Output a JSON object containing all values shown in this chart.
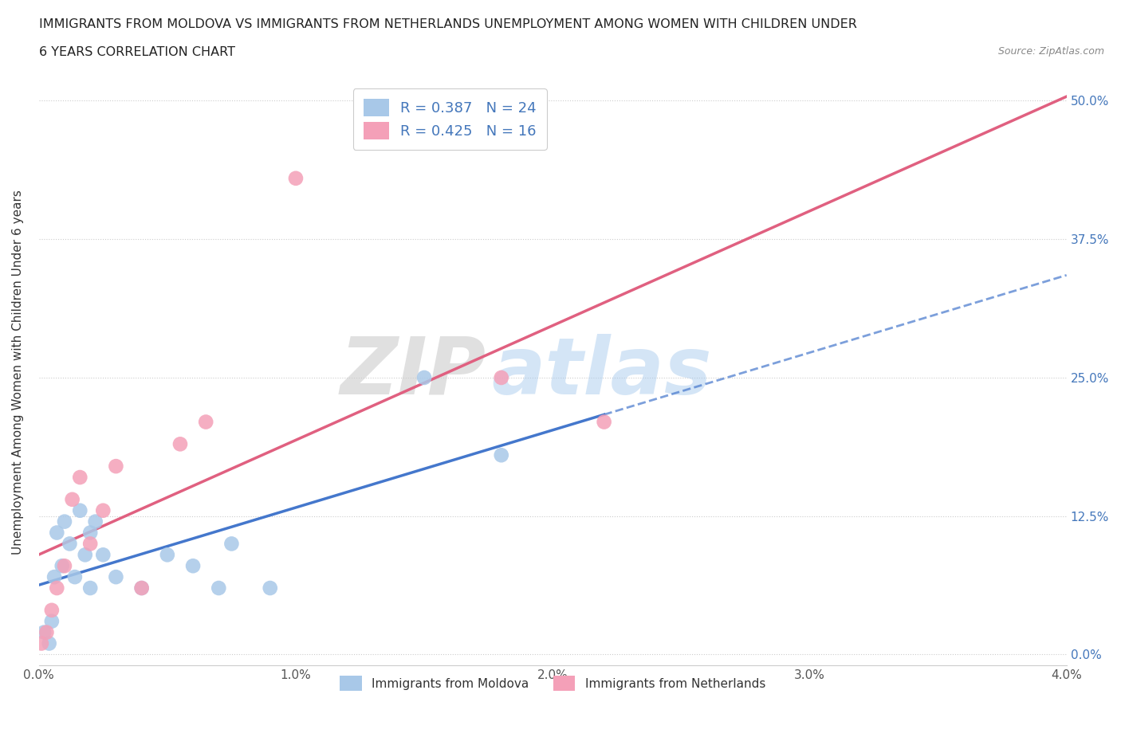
{
  "title_line1": "IMMIGRANTS FROM MOLDOVA VS IMMIGRANTS FROM NETHERLANDS UNEMPLOYMENT AMONG WOMEN WITH CHILDREN UNDER",
  "title_line2": "6 YEARS CORRELATION CHART",
  "source": "Source: ZipAtlas.com",
  "ylabel": "Unemployment Among Women with Children Under 6 years",
  "xlim": [
    0.0,
    0.04
  ],
  "ylim": [
    -0.01,
    0.52
  ],
  "yticks": [
    0.0,
    0.125,
    0.25,
    0.375,
    0.5
  ],
  "ytick_labels": [
    "0.0%",
    "12.5%",
    "25.0%",
    "37.5%",
    "50.0%"
  ],
  "xticks": [
    0.0,
    0.01,
    0.02,
    0.03,
    0.04
  ],
  "xtick_labels": [
    "0.0%",
    "1.0%",
    "2.0%",
    "3.0%",
    "4.0%"
  ],
  "moldova_color": "#a8c8e8",
  "netherlands_color": "#f4a0b8",
  "moldova_r": 0.387,
  "moldova_n": 24,
  "netherlands_r": 0.425,
  "netherlands_n": 16,
  "moldova_x": [
    0.0002,
    0.0004,
    0.0005,
    0.0006,
    0.0007,
    0.0009,
    0.001,
    0.0012,
    0.0014,
    0.0016,
    0.0018,
    0.002,
    0.002,
    0.0022,
    0.0025,
    0.003,
    0.004,
    0.005,
    0.006,
    0.007,
    0.0075,
    0.009,
    0.015,
    0.018
  ],
  "moldova_y": [
    0.02,
    0.01,
    0.03,
    0.07,
    0.11,
    0.08,
    0.12,
    0.1,
    0.07,
    0.13,
    0.09,
    0.11,
    0.06,
    0.12,
    0.09,
    0.07,
    0.06,
    0.09,
    0.08,
    0.06,
    0.1,
    0.06,
    0.25,
    0.18
  ],
  "netherlands_x": [
    0.0001,
    0.0003,
    0.0005,
    0.0007,
    0.001,
    0.0013,
    0.0016,
    0.002,
    0.0025,
    0.003,
    0.004,
    0.0055,
    0.0065,
    0.01,
    0.018,
    0.022
  ],
  "netherlands_y": [
    0.01,
    0.02,
    0.04,
    0.06,
    0.08,
    0.14,
    0.16,
    0.1,
    0.13,
    0.17,
    0.06,
    0.19,
    0.21,
    0.43,
    0.25,
    0.21
  ],
  "background_color": "#ffffff",
  "grid_color": "#cccccc",
  "watermark_zip": "ZIP",
  "watermark_atlas": "atlas",
  "trend_color_moldova": "#4477cc",
  "trend_color_netherlands": "#e06080",
  "right_ytick_color": "#4477bb",
  "legend_label_color": "#4477bb",
  "bottom_label_moldova": "Immigrants from Moldova",
  "bottom_label_netherlands": "Immigrants from Netherlands"
}
